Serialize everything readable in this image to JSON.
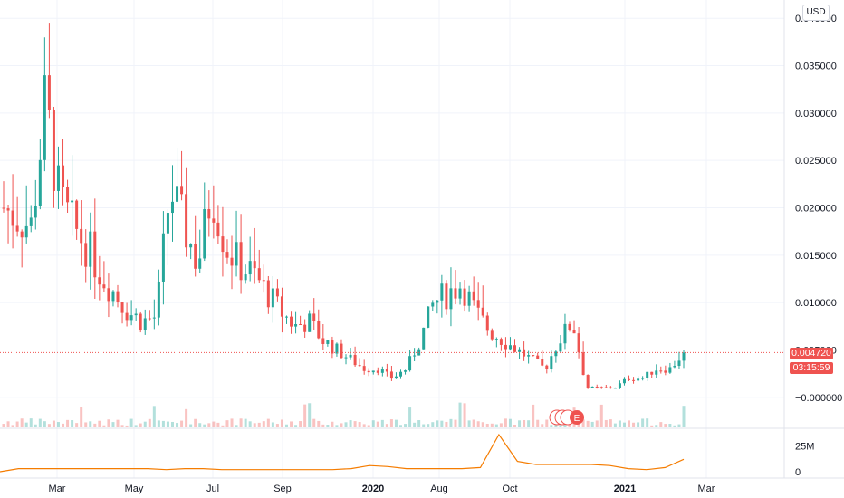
{
  "currency": "USD",
  "current_price": "0.004720",
  "countdown": "03:15:59",
  "event_marker": "E",
  "colors": {
    "up": "#26a69a",
    "down": "#ef5350",
    "indicator": "#f57c00",
    "grid": "#f0f3fa",
    "badge": "#ef5350"
  },
  "chart_data": [
    {
      "type": "candlestick",
      "y_ticks": [
        "0.040000",
        "0.035000",
        "0.030000",
        "0.025000",
        "0.020000",
        "0.015000",
        "0.010000",
        "0.005000",
        "−0.000000"
      ],
      "ylim": [
        -0.0005,
        0.0405
      ],
      "x_ticks": [
        "Mar",
        "May",
        "Jul",
        "Sep",
        "2020",
        "Aug",
        "Oct",
        "2021",
        "Mar"
      ],
      "approx_closes": [
        0.02,
        0.019,
        0.018,
        0.031,
        0.021,
        0.018,
        0.016,
        0.013,
        0.011,
        0.009,
        0.008,
        0.0085,
        0.022,
        0.018,
        0.014,
        0.022,
        0.016,
        0.014,
        0.013,
        0.011,
        0.009,
        0.0075,
        0.008,
        0.006,
        0.005,
        0.004,
        0.003,
        0.003,
        0.002,
        0.003,
        0.006,
        0.01,
        0.011,
        0.012,
        0.009,
        0.007,
        0.006,
        0.005,
        0.004,
        0.003,
        0.006,
        0.008,
        0.001,
        0.001,
        0.001,
        0.002,
        0.002,
        0.003,
        0.003,
        0.0047
      ],
      "last_close": 0.00472
    },
    {
      "type": "line",
      "y_ticks": [
        "25M",
        "0"
      ],
      "approx_values_M": [
        0,
        3,
        3,
        3,
        3,
        3,
        3,
        3,
        3,
        2,
        3,
        3,
        2,
        2,
        2,
        2,
        2,
        2,
        2,
        3,
        6,
        5,
        3,
        3,
        3,
        3,
        4,
        36,
        10,
        7,
        7,
        7,
        7,
        6,
        3,
        2,
        4,
        12
      ]
    }
  ]
}
